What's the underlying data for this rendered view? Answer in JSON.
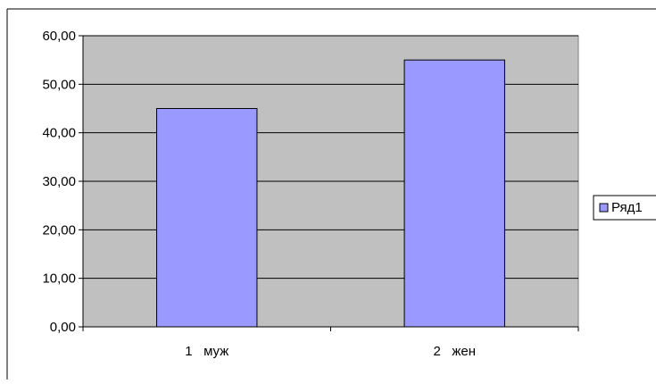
{
  "chart_data": {
    "type": "bar",
    "title": "",
    "xlabel": "",
    "ylabel": "",
    "categories": [
      "1   муж",
      "2   жен"
    ],
    "series": [
      {
        "name": "Ряд1",
        "values": [
          45.0,
          55.0
        ],
        "color": "#9999FF"
      }
    ],
    "ylim": [
      0,
      60
    ],
    "yticks": [
      "0,00",
      "10,00",
      "20,00",
      "30,00",
      "40,00",
      "50,00",
      "60,00"
    ],
    "grid": true,
    "legend": "right",
    "plot_background": "#C0C0C0",
    "gridline_color": "#000000"
  }
}
